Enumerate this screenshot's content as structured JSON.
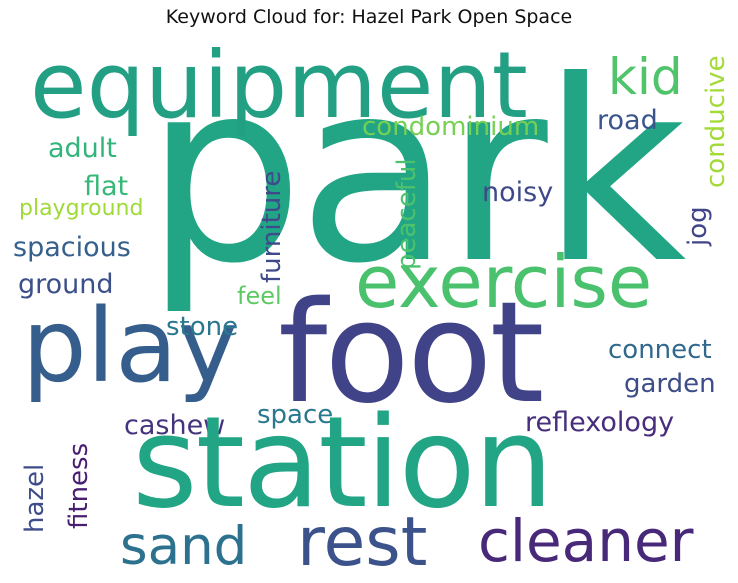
{
  "title": "Keyword Cloud for: Hazel Park Open Space",
  "words": {
    "park": {
      "text": "park",
      "color": "#21a585"
    },
    "foot": {
      "text": "foot",
      "color": "#404387"
    },
    "station": {
      "text": "station",
      "color": "#21a585"
    },
    "equipment": {
      "text": "equipment",
      "color": "#23a083"
    },
    "play": {
      "text": "play",
      "color": "#355e8d"
    },
    "exercise": {
      "text": "exercise",
      "color": "#4ac16d"
    },
    "rest": {
      "text": "rest",
      "color": "#3b528b"
    },
    "cleaner": {
      "text": "cleaner",
      "color": "#482878"
    },
    "sand": {
      "text": "sand",
      "color": "#2c728e"
    },
    "kid": {
      "text": "kid",
      "color": "#50c46a"
    },
    "condominium": {
      "text": "condominium",
      "color": "#75d054"
    },
    "road": {
      "text": "road",
      "color": "#3a548c"
    },
    "adult": {
      "text": "adult",
      "color": "#31b57b"
    },
    "flat": {
      "text": "flat",
      "color": "#37b878"
    },
    "playground": {
      "text": "playground",
      "color": "#a0da39"
    },
    "spacious": {
      "text": "spacious",
      "color": "#355f8d"
    },
    "ground": {
      "text": "ground",
      "color": "#3c4f8a"
    },
    "noisy": {
      "text": "noisy",
      "color": "#3f4889"
    },
    "conducive": {
      "text": "conducive",
      "color": "#a2da37"
    },
    "jog": {
      "text": "jog",
      "color": "#414487"
    },
    "peaceful": {
      "text": "peaceful",
      "color": "#4cc26c"
    },
    "furniture": {
      "text": "furniture",
      "color": "#3e4a89"
    },
    "feel": {
      "text": "feel",
      "color": "#5ec962"
    },
    "stone": {
      "text": "stone",
      "color": "#2a788e"
    },
    "connect": {
      "text": "connect",
      "color": "#31688e"
    },
    "garden": {
      "text": "garden",
      "color": "#3d4d8a"
    },
    "space": {
      "text": "space",
      "color": "#2a788e"
    },
    "cashew": {
      "text": "cashew",
      "color": "#46337e"
    },
    "reflexology": {
      "text": "reflexology",
      "color": "#472d7b"
    },
    "hazel": {
      "text": "hazel",
      "color": "#3e4c8a"
    },
    "fitness": {
      "text": "fitness",
      "color": "#481f70"
    }
  }
}
